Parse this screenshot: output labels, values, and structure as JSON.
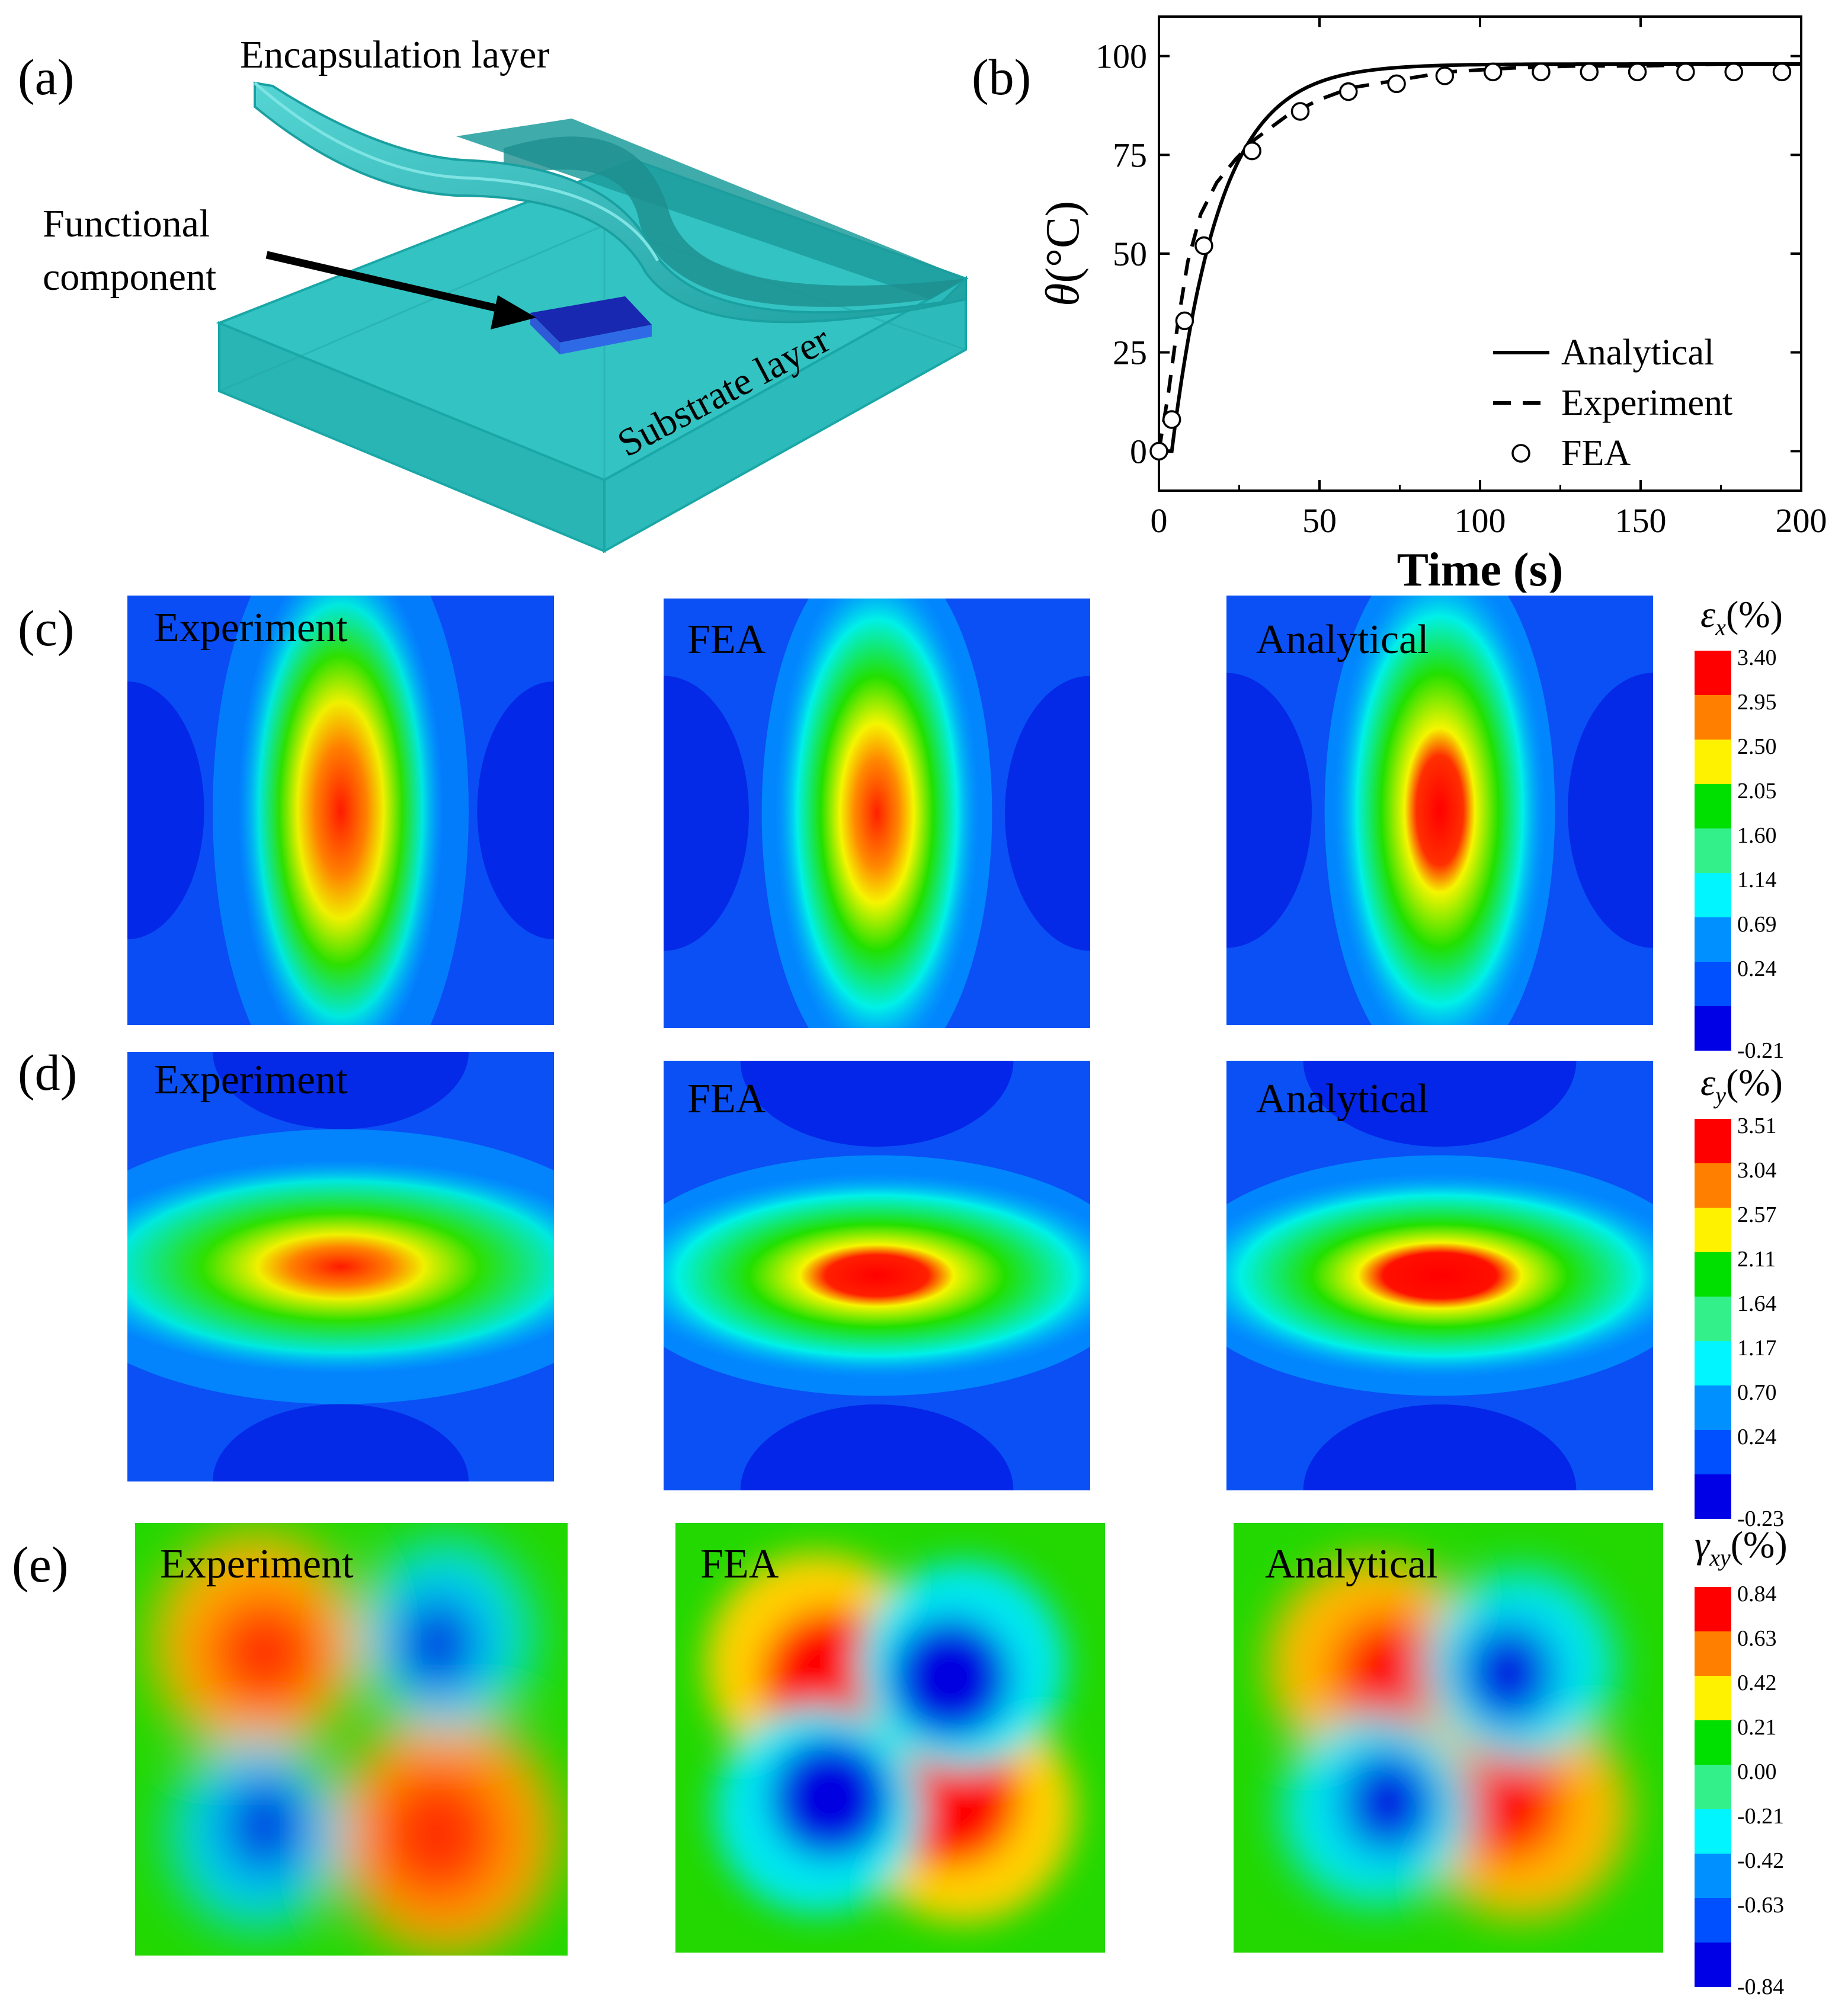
{
  "panels": {
    "a": {
      "label": "(a)",
      "encapsulation": "Encapsulation  layer",
      "functional_1": "Functional",
      "functional_2": "component",
      "substrate": "Substrate  layer",
      "colors": {
        "cyan": "#33C6C6",
        "cyan_dark": "#1FA3A3",
        "component": "#1A27B8"
      }
    },
    "b": {
      "label": "(b)",
      "chart_data": {
        "type": "line",
        "xlabel": "Time (s)",
        "ylabel_symbol": "θ",
        "ylabel_unit": "(°C)",
        "xlim": [
          0,
          200
        ],
        "ylim": [
          -10,
          110
        ],
        "xticks": [
          0,
          50,
          100,
          150,
          200
        ],
        "yticks": [
          0,
          25,
          50,
          75,
          100
        ],
        "grid": false,
        "legend_position": "bottom-right",
        "series": [
          {
            "name": "Analytical",
            "style": "solid",
            "tau": 15,
            "tmin": 4,
            "ymax": 98
          },
          {
            "name": "Experiment",
            "style": "dashed",
            "x": [
              0,
              3,
              6,
              9,
              13,
              18,
              24,
              30,
              40,
              50,
              60,
              75,
              90,
              110,
              130,
              150,
              175,
              200
            ],
            "y": [
              0,
              15,
              33,
              48,
              60,
              68,
              74,
              79,
              85,
              89,
              92,
              94,
              96,
              97,
              97.5,
              97.5,
              98,
              98
            ]
          },
          {
            "name": "FEA",
            "style": "circles",
            "x": [
              0,
              4,
              8,
              14,
              29,
              44,
              59,
              74,
              89,
              104,
              119,
              134,
              149,
              164,
              179,
              194
            ],
            "y": [
              0,
              8,
              33,
              52,
              76,
              86,
              91,
              93,
              95,
              96,
              96,
              96,
              96,
              96,
              96,
              96
            ]
          }
        ]
      }
    },
    "c": {
      "label": "(c)",
      "maps": [
        "Experiment",
        "FEA",
        "Analytical"
      ],
      "colorbar_symbol": "ε",
      "colorbar_sub": "x",
      "colorbar_unit": "(%)",
      "ticks": [
        "3.40",
        "2.95",
        "2.50",
        "2.05",
        "1.60",
        "1.14",
        "0.69",
        "0.24",
        "-0.21"
      ]
    },
    "d": {
      "label": "(d)",
      "maps": [
        "Experiment",
        "FEA",
        "Analytical"
      ],
      "colorbar_symbol": "ε",
      "colorbar_sub": "y",
      "colorbar_unit": "(%)",
      "ticks": [
        "3.51",
        "3.04",
        "2.57",
        "2.11",
        "1.64",
        "1.17",
        "0.70",
        "0.24",
        "-0.23"
      ]
    },
    "e": {
      "label": "(e)",
      "maps": [
        "Experiment",
        "FEA",
        "Analytical"
      ],
      "colorbar_symbol": "γ",
      "colorbar_sub": "xy",
      "colorbar_unit": "(%)",
      "ticks": [
        "0.84",
        "0.63",
        "0.42",
        "0.21",
        "0.00",
        "-0.21",
        "-0.42",
        "-0.63",
        "-0.84"
      ]
    }
  },
  "colorbar_colors": [
    "#FF0000",
    "#FF7F00",
    "#FFF200",
    "#00E000",
    "#33F08A",
    "#00F5FF",
    "#0090FF",
    "#0050FF",
    "#0000E6"
  ]
}
